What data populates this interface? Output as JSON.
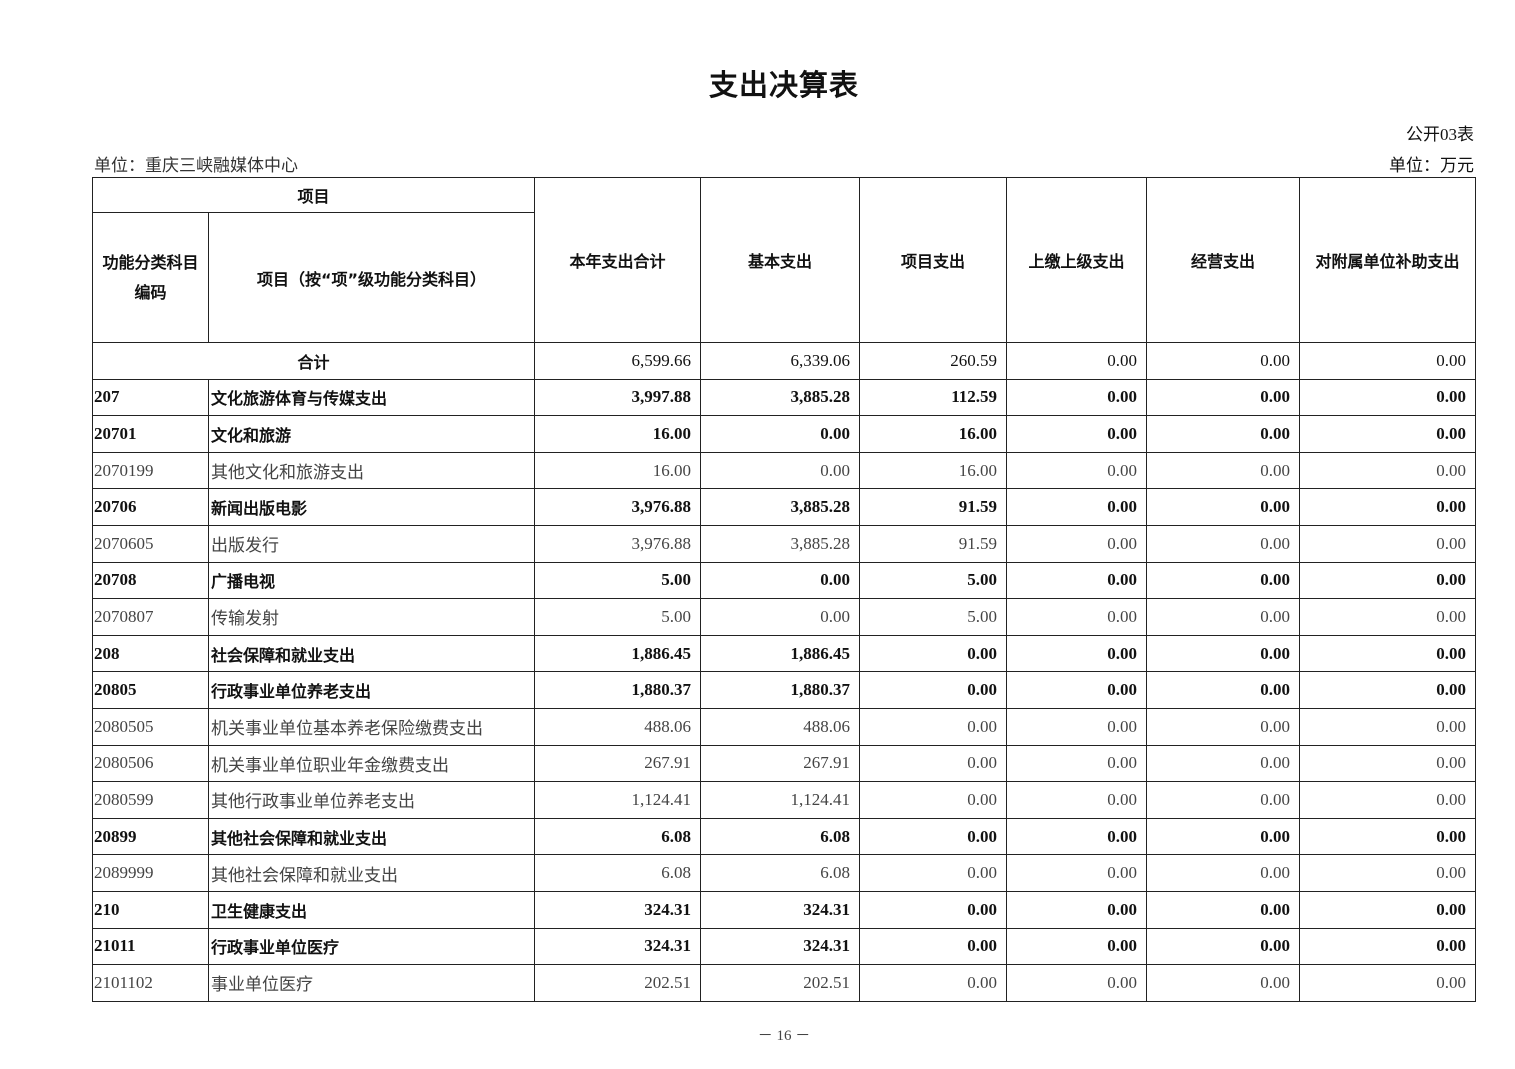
{
  "title": "支出决算表",
  "form_no": "公开03表",
  "unit_org": "单位：重庆三峡融媒体中心",
  "unit_currency": "单位：万元",
  "headers": {
    "project": "项目",
    "code": "功能分类科目编码",
    "name": "项目（按“项”级功能分类科目）",
    "total": "本年支出合计",
    "basic": "基本支出",
    "project_exp": "项目支出",
    "upper": "上缴上级支出",
    "business": "经营支出",
    "subsidy": "对附属单位补助支出"
  },
  "total_row": {
    "label": "合计",
    "values": [
      "6,599.66",
      "6,339.06",
      "260.59",
      "0.00",
      "0.00",
      "0.00"
    ]
  },
  "rows": [
    {
      "code": "207",
      "name": "文化旅游体育与传媒支出",
      "bold": true,
      "values": [
        "3,997.88",
        "3,885.28",
        "112.59",
        "0.00",
        "0.00",
        "0.00"
      ]
    },
    {
      "code": "20701",
      "name": "文化和旅游",
      "bold": true,
      "values": [
        "16.00",
        "0.00",
        "16.00",
        "0.00",
        "0.00",
        "0.00"
      ]
    },
    {
      "code": "2070199",
      "name": "其他文化和旅游支出",
      "bold": false,
      "values": [
        "16.00",
        "0.00",
        "16.00",
        "0.00",
        "0.00",
        "0.00"
      ]
    },
    {
      "code": "20706",
      "name": "新闻出版电影",
      "bold": true,
      "values": [
        "3,976.88",
        "3,885.28",
        "91.59",
        "0.00",
        "0.00",
        "0.00"
      ]
    },
    {
      "code": "2070605",
      "name": "出版发行",
      "bold": false,
      "values": [
        "3,976.88",
        "3,885.28",
        "91.59",
        "0.00",
        "0.00",
        "0.00"
      ]
    },
    {
      "code": "20708",
      "name": "广播电视",
      "bold": true,
      "values": [
        "5.00",
        "0.00",
        "5.00",
        "0.00",
        "0.00",
        "0.00"
      ]
    },
    {
      "code": "2070807",
      "name": "传输发射",
      "bold": false,
      "values": [
        "5.00",
        "0.00",
        "5.00",
        "0.00",
        "0.00",
        "0.00"
      ]
    },
    {
      "code": "208",
      "name": "社会保障和就业支出",
      "bold": true,
      "values": [
        "1,886.45",
        "1,886.45",
        "0.00",
        "0.00",
        "0.00",
        "0.00"
      ]
    },
    {
      "code": "20805",
      "name": "行政事业单位养老支出",
      "bold": true,
      "values": [
        "1,880.37",
        "1,880.37",
        "0.00",
        "0.00",
        "0.00",
        "0.00"
      ]
    },
    {
      "code": "2080505",
      "name": "机关事业单位基本养老保险缴费支出",
      "bold": false,
      "values": [
        "488.06",
        "488.06",
        "0.00",
        "0.00",
        "0.00",
        "0.00"
      ]
    },
    {
      "code": "2080506",
      "name": "机关事业单位职业年金缴费支出",
      "bold": false,
      "values": [
        "267.91",
        "267.91",
        "0.00",
        "0.00",
        "0.00",
        "0.00"
      ]
    },
    {
      "code": "2080599",
      "name": "其他行政事业单位养老支出",
      "bold": false,
      "values": [
        "1,124.41",
        "1,124.41",
        "0.00",
        "0.00",
        "0.00",
        "0.00"
      ]
    },
    {
      "code": "20899",
      "name": "其他社会保障和就业支出",
      "bold": true,
      "values": [
        "6.08",
        "6.08",
        "0.00",
        "0.00",
        "0.00",
        "0.00"
      ]
    },
    {
      "code": "2089999",
      "name": "其他社会保障和就业支出",
      "bold": false,
      "values": [
        "6.08",
        "6.08",
        "0.00",
        "0.00",
        "0.00",
        "0.00"
      ]
    },
    {
      "code": "210",
      "name": "卫生健康支出",
      "bold": true,
      "values": [
        "324.31",
        "324.31",
        "0.00",
        "0.00",
        "0.00",
        "0.00"
      ]
    },
    {
      "code": "21011",
      "name": "行政事业单位医疗",
      "bold": true,
      "values": [
        "324.31",
        "324.31",
        "0.00",
        "0.00",
        "0.00",
        "0.00"
      ]
    },
    {
      "code": "2101102",
      "name": "事业单位医疗",
      "bold": false,
      "values": [
        "202.51",
        "202.51",
        "0.00",
        "0.00",
        "0.00",
        "0.00"
      ]
    }
  ],
  "page_number": "－ 16 －"
}
